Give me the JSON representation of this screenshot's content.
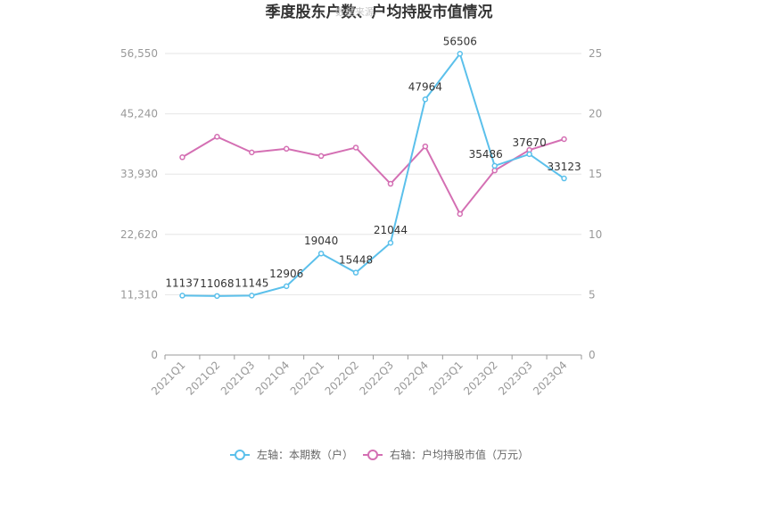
{
  "chart_data": {
    "type": "line",
    "title": "季度股东户数、户均持股市值情况",
    "watermark": "数据来源",
    "categories": [
      "2021Q1",
      "2021Q2",
      "2021Q3",
      "2021Q4",
      "2022Q1",
      "2022Q2",
      "2022Q3",
      "2022Q4",
      "2023Q1",
      "2023Q2",
      "2023Q3",
      "2023Q4"
    ],
    "series": [
      {
        "name": "左轴：本期数（户）",
        "axis": "left",
        "color": "#5bc0eb",
        "values": [
          11137,
          11068,
          11145,
          12906,
          19040,
          15448,
          21044,
          47964,
          56506,
          35486,
          37670,
          33123
        ],
        "labels": [
          "11137",
          "11068",
          "11145",
          "12906",
          "19040",
          "15448",
          "21044",
          "47964",
          "56506",
          "35486",
          "37670",
          "33123"
        ]
      },
      {
        "name": "右轴：户均持股市值（万元）",
        "axis": "right",
        "color": "#d46fb3",
        "values": [
          16.4,
          18.1,
          16.8,
          17.1,
          16.5,
          17.2,
          14.2,
          17.3,
          11.7,
          15.3,
          17.0,
          17.9
        ]
      }
    ],
    "left_axis": {
      "min": 0,
      "max": 56550,
      "ticks": [
        0,
        11310,
        22620,
        33930,
        45240,
        56550
      ],
      "tick_labels": [
        "0",
        "11,310",
        "22,620",
        "33,930",
        "45,240",
        "56,550"
      ]
    },
    "right_axis": {
      "min": 0,
      "max": 25,
      "ticks": [
        0,
        5,
        10,
        15,
        20,
        25
      ],
      "tick_labels": [
        "0",
        "5",
        "10",
        "15",
        "20",
        "25"
      ]
    },
    "grid": true,
    "legend_position": "bottom-center"
  }
}
